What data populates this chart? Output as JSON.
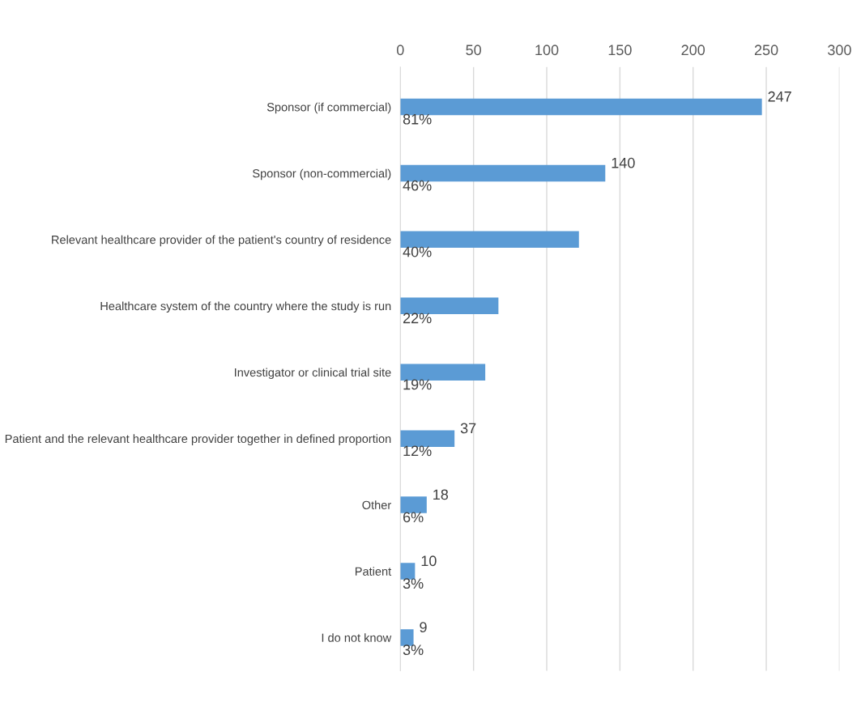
{
  "chart_data": {
    "type": "bar",
    "orientation": "horizontal",
    "categories": [
      "Sponsor (if commercial)",
      "Sponsor (non-commercial)",
      "Relevant healthcare provider of the patient's country of residence",
      "Healthcare system of the country where the study is run",
      "Investigator or clinical trial site",
      "Patient and the relevant healthcare provider together in defined proportion",
      "Other",
      "Patient",
      "I do not know"
    ],
    "values": [
      247,
      140,
      122,
      67,
      58,
      37,
      18,
      10,
      9
    ],
    "value_labels": [
      "247",
      "140",
      null,
      null,
      null,
      "37",
      "18",
      "10",
      "9"
    ],
    "color": "#5b9bd5",
    "xlim": [
      0,
      300
    ],
    "xticks": [
      0,
      50,
      100,
      150,
      200,
      250,
      300
    ],
    "grid": "x",
    "annotations": [
      "81%",
      "46%",
      "40%",
      "22%",
      "19%",
      "12%",
      "6%",
      "3%",
      "3%"
    ]
  }
}
